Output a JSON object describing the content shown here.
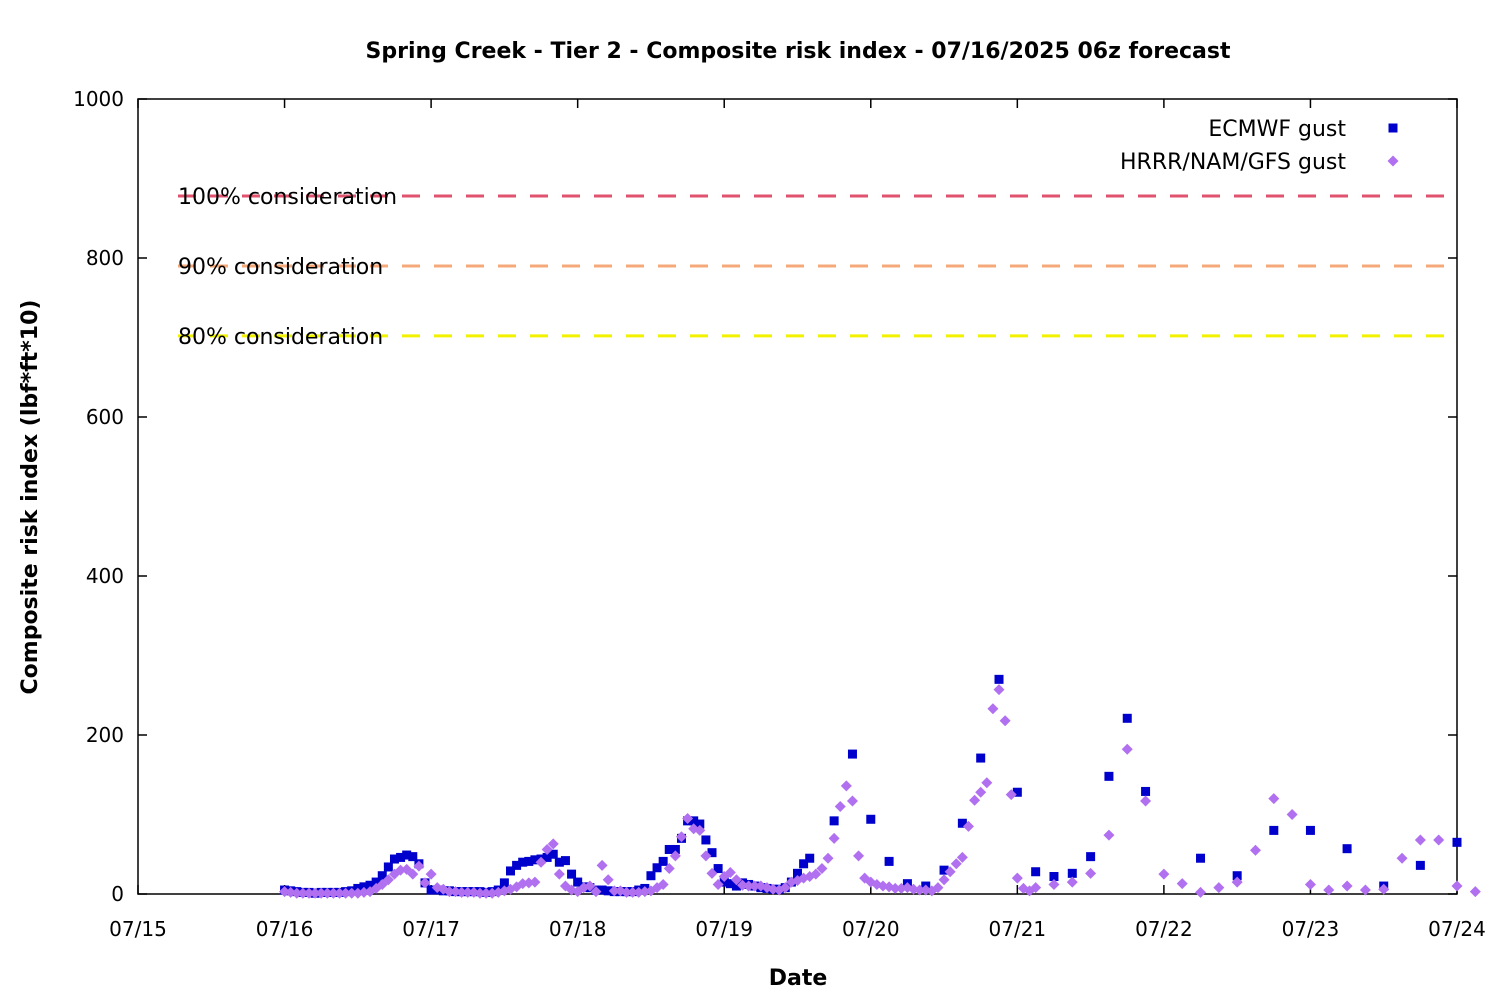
{
  "chart_data": {
    "type": "scatter",
    "title": "Spring Creek - Tier 2 - Composite risk index - 07/16/2025 06z forecast",
    "xlabel": "Date",
    "ylabel": "Composite risk index (lbf*ft*10)",
    "x_ticks": [
      "07/15",
      "07/16",
      "07/17",
      "07/18",
      "07/19",
      "07/20",
      "07/21",
      "07/22",
      "07/23",
      "07/24"
    ],
    "y_ticks": [
      "0",
      "200",
      "400",
      "600",
      "800",
      "1000"
    ],
    "xlim": [
      "07/15 00z",
      "07/24 00z"
    ],
    "ylim": [
      0,
      1000
    ],
    "grid": false,
    "legend_position": "top-right",
    "thresholds": [
      {
        "label": "100% consideration",
        "value": 878,
        "color": "#e0526e"
      },
      {
        "label": "90% consideration",
        "value": 790,
        "color": "#f5a878"
      },
      {
        "label": "80% consideration",
        "value": 702,
        "color": "#f2f200"
      }
    ],
    "series": [
      {
        "name": "ECMWF gust",
        "marker": "square",
        "color": "#0000cc",
        "points": [
          [
            "07/16 00z",
            5
          ],
          [
            "07/16 01z",
            4
          ],
          [
            "07/16 02z",
            3
          ],
          [
            "07/16 03z",
            2
          ],
          [
            "07/16 04z",
            2
          ],
          [
            "07/16 05z",
            1
          ],
          [
            "07/16 06z",
            2
          ],
          [
            "07/16 07z",
            2
          ],
          [
            "07/16 08z",
            2
          ],
          [
            "07/16 09z",
            2
          ],
          [
            "07/16 10z",
            3
          ],
          [
            "07/16 11z",
            4
          ],
          [
            "07/16 12z",
            7
          ],
          [
            "07/16 13z",
            9
          ],
          [
            "07/16 14z",
            11
          ],
          [
            "07/16 15z",
            15
          ],
          [
            "07/16 16z",
            23
          ],
          [
            "07/16 17z",
            34
          ],
          [
            "07/16 18z",
            44
          ],
          [
            "07/16 19z",
            46
          ],
          [
            "07/16 20z",
            49
          ],
          [
            "07/16 21z",
            47
          ],
          [
            "07/16 22z",
            38
          ],
          [
            "07/16 23z",
            14
          ],
          [
            "07/17 00z",
            5
          ],
          [
            "07/17 01z",
            5
          ],
          [
            "07/17 02z",
            4
          ],
          [
            "07/17 03z",
            4
          ],
          [
            "07/17 04z",
            3
          ],
          [
            "07/17 05z",
            3
          ],
          [
            "07/17 06z",
            3
          ],
          [
            "07/17 07z",
            3
          ],
          [
            "07/17 08z",
            3
          ],
          [
            "07/17 09z",
            2
          ],
          [
            "07/17 10z",
            3
          ],
          [
            "07/17 11z",
            5
          ],
          [
            "07/17 12z",
            14
          ],
          [
            "07/17 13z",
            29
          ],
          [
            "07/17 14z",
            36
          ],
          [
            "07/17 15z",
            40
          ],
          [
            "07/17 16z",
            41
          ],
          [
            "07/17 17z",
            43
          ],
          [
            "07/17 18z",
            44
          ],
          [
            "07/17 19z",
            46
          ],
          [
            "07/17 20z",
            50
          ],
          [
            "07/17 21z",
            40
          ],
          [
            "07/17 22z",
            42
          ],
          [
            "07/17 23z",
            25
          ],
          [
            "07/18 00z",
            15
          ],
          [
            "07/18 01z",
            9
          ],
          [
            "07/18 02z",
            8
          ],
          [
            "07/18 03z",
            5
          ],
          [
            "07/18 04z",
            5
          ],
          [
            "07/18 05z",
            4
          ],
          [
            "07/18 06z",
            3
          ],
          [
            "07/18 07z",
            3
          ],
          [
            "07/18 08z",
            3
          ],
          [
            "07/18 09z",
            3
          ],
          [
            "07/18 10z",
            5
          ],
          [
            "07/18 11z",
            7
          ],
          [
            "07/18 12z",
            23
          ],
          [
            "07/18 13z",
            33
          ],
          [
            "07/18 14z",
            41
          ],
          [
            "07/18 15z",
            56
          ],
          [
            "07/18 16z",
            56
          ],
          [
            "07/18 17z",
            70
          ],
          [
            "07/18 18z",
            92
          ],
          [
            "07/18 19z",
            92
          ],
          [
            "07/18 20z",
            88
          ],
          [
            "07/18 21z",
            68
          ],
          [
            "07/18 22z",
            52
          ],
          [
            "07/18 23z",
            32
          ],
          [
            "07/19 00z",
            15
          ],
          [
            "07/19 01z",
            13
          ],
          [
            "07/19 02z",
            10
          ],
          [
            "07/19 03z",
            14
          ],
          [
            "07/19 04z",
            12
          ],
          [
            "07/19 05z",
            10
          ],
          [
            "07/19 06z",
            8
          ],
          [
            "07/19 07z",
            7
          ],
          [
            "07/19 08z",
            6
          ],
          [
            "07/19 09z",
            6
          ],
          [
            "07/19 10z",
            8
          ],
          [
            "07/19 11z",
            15
          ],
          [
            "07/19 12z",
            26
          ],
          [
            "07/19 13z",
            38
          ],
          [
            "07/19 14z",
            45
          ],
          [
            "07/19 18z",
            92
          ],
          [
            "07/19 21z",
            176
          ],
          [
            "07/20 00z",
            94
          ],
          [
            "07/20 03z",
            41
          ],
          [
            "07/20 06z",
            13
          ],
          [
            "07/20 09z",
            10
          ],
          [
            "07/20 12z",
            30
          ],
          [
            "07/20 15z",
            89
          ],
          [
            "07/20 18z",
            171
          ],
          [
            "07/20 21z",
            270
          ],
          [
            "07/21 00z",
            128
          ],
          [
            "07/21 03z",
            28
          ],
          [
            "07/21 06z",
            22
          ],
          [
            "07/21 09z",
            26
          ],
          [
            "07/21 12z",
            47
          ],
          [
            "07/21 15z",
            148
          ],
          [
            "07/21 18z",
            221
          ],
          [
            "07/21 21z",
            129
          ],
          [
            "07/22 06z",
            45
          ],
          [
            "07/22 12z",
            23
          ],
          [
            "07/22 18z",
            80
          ],
          [
            "07/23 00z",
            80
          ],
          [
            "07/23 06z",
            57
          ],
          [
            "07/23 12z",
            10
          ],
          [
            "07/23 18z",
            36
          ],
          [
            "07/24 00z",
            65
          ]
        ]
      },
      {
        "name": "HRRR/NAM/GFS gust",
        "marker": "diamond",
        "color": "#b070f0",
        "points": [
          [
            "07/16 00z",
            3
          ],
          [
            "07/16 01z",
            2
          ],
          [
            "07/16 02z",
            1
          ],
          [
            "07/16 03z",
            1
          ],
          [
            "07/16 04z",
            1
          ],
          [
            "07/16 05z",
            1
          ],
          [
            "07/16 06z",
            1
          ],
          [
            "07/16 07z",
            1
          ],
          [
            "07/16 08z",
            1
          ],
          [
            "07/16 09z",
            1
          ],
          [
            "07/16 10z",
            1
          ],
          [
            "07/16 11z",
            1
          ],
          [
            "07/16 12z",
            1
          ],
          [
            "07/16 13z",
            2
          ],
          [
            "07/16 14z",
            3
          ],
          [
            "07/16 15z",
            7
          ],
          [
            "07/16 16z",
            12
          ],
          [
            "07/16 17z",
            18
          ],
          [
            "07/16 18z",
            25
          ],
          [
            "07/16 19z",
            30
          ],
          [
            "07/16 20z",
            31
          ],
          [
            "07/16 21z",
            25
          ],
          [
            "07/16 22z",
            35
          ],
          [
            "07/16 23z",
            14
          ],
          [
            "07/17 00z",
            25
          ],
          [
            "07/17 01z",
            8
          ],
          [
            "07/17 02z",
            6
          ],
          [
            "07/17 03z",
            3
          ],
          [
            "07/17 04z",
            3
          ],
          [
            "07/17 05z",
            2
          ],
          [
            "07/17 06z",
            2
          ],
          [
            "07/17 07z",
            2
          ],
          [
            "07/17 08z",
            1
          ],
          [
            "07/17 09z",
            1
          ],
          [
            "07/17 10z",
            1
          ],
          [
            "07/17 11z",
            2
          ],
          [
            "07/17 12z",
            4
          ],
          [
            "07/17 13z",
            6
          ],
          [
            "07/17 14z",
            9
          ],
          [
            "07/17 15z",
            13
          ],
          [
            "07/17 16z",
            14
          ],
          [
            "07/17 17z",
            15
          ],
          [
            "07/17 18z",
            40
          ],
          [
            "07/17 19z",
            56
          ],
          [
            "07/17 20z",
            63
          ],
          [
            "07/17 21z",
            25
          ],
          [
            "07/17 22z",
            10
          ],
          [
            "07/17 23z",
            5
          ],
          [
            "07/18 00z",
            3
          ],
          [
            "07/18 01z",
            8
          ],
          [
            "07/18 02z",
            10
          ],
          [
            "07/18 03z",
            3
          ],
          [
            "07/18 04z",
            36
          ],
          [
            "07/18 05z",
            18
          ],
          [
            "07/18 06z",
            4
          ],
          [
            "07/18 07z",
            4
          ],
          [
            "07/18 08z",
            2
          ],
          [
            "07/18 09z",
            2
          ],
          [
            "07/18 10z",
            2
          ],
          [
            "07/18 11z",
            3
          ],
          [
            "07/18 12z",
            4
          ],
          [
            "07/18 13z",
            8
          ],
          [
            "07/18 14z",
            12
          ],
          [
            "07/18 15z",
            32
          ],
          [
            "07/18 16z",
            48
          ],
          [
            "07/18 17z",
            72
          ],
          [
            "07/18 18z",
            95
          ],
          [
            "07/18 19z",
            82
          ],
          [
            "07/18 20z",
            80
          ],
          [
            "07/18 21z",
            48
          ],
          [
            "07/18 22z",
            26
          ],
          [
            "07/18 23z",
            12
          ],
          [
            "07/19 00z",
            22
          ],
          [
            "07/19 01z",
            27
          ],
          [
            "07/19 02z",
            18
          ],
          [
            "07/19 03z",
            11
          ],
          [
            "07/19 04z",
            10
          ],
          [
            "07/19 05z",
            10
          ],
          [
            "07/19 06z",
            10
          ],
          [
            "07/19 07z",
            8
          ],
          [
            "07/19 08z",
            6
          ],
          [
            "07/19 09z",
            5
          ],
          [
            "07/19 10z",
            8
          ],
          [
            "07/19 11z",
            15
          ],
          [
            "07/19 12z",
            17
          ],
          [
            "07/19 13z",
            20
          ],
          [
            "07/19 14z",
            22
          ],
          [
            "07/19 15z",
            25
          ],
          [
            "07/19 16z",
            32
          ],
          [
            "07/19 17z",
            45
          ],
          [
            "07/19 18z",
            70
          ],
          [
            "07/19 19z",
            110
          ],
          [
            "07/19 20z",
            136
          ],
          [
            "07/19 21z",
            117
          ],
          [
            "07/19 22z",
            48
          ],
          [
            "07/19 23z",
            20
          ],
          [
            "07/20 00z",
            15
          ],
          [
            "07/20 01z",
            12
          ],
          [
            "07/20 02z",
            10
          ],
          [
            "07/20 03z",
            9
          ],
          [
            "07/20 04z",
            7
          ],
          [
            "07/20 05z",
            7
          ],
          [
            "07/20 06z",
            8
          ],
          [
            "07/20 07z",
            6
          ],
          [
            "07/20 08z",
            5
          ],
          [
            "07/20 09z",
            5
          ],
          [
            "07/20 10z",
            4
          ],
          [
            "07/20 11z",
            8
          ],
          [
            "07/20 12z",
            18
          ],
          [
            "07/20 13z",
            28
          ],
          [
            "07/20 14z",
            38
          ],
          [
            "07/20 15z",
            46
          ],
          [
            "07/20 16z",
            85
          ],
          [
            "07/20 17z",
            118
          ],
          [
            "07/20 18z",
            128
          ],
          [
            "07/20 19z",
            140
          ],
          [
            "07/20 20z",
            233
          ],
          [
            "07/20 21z",
            257
          ],
          [
            "07/20 22z",
            218
          ],
          [
            "07/20 23z",
            125
          ],
          [
            "07/21 00z",
            20
          ],
          [
            "07/21 01z",
            7
          ],
          [
            "07/21 02z",
            4
          ],
          [
            "07/21 03z",
            8
          ],
          [
            "07/21 06z",
            12
          ],
          [
            "07/21 09z",
            15
          ],
          [
            "07/21 12z",
            26
          ],
          [
            "07/21 15z",
            74
          ],
          [
            "07/21 18z",
            182
          ],
          [
            "07/21 21z",
            117
          ],
          [
            "07/22 00z",
            25
          ],
          [
            "07/22 03z",
            13
          ],
          [
            "07/22 06z",
            2
          ],
          [
            "07/22 09z",
            8
          ],
          [
            "07/22 12z",
            15
          ],
          [
            "07/22 15z",
            55
          ],
          [
            "07/22 18z",
            120
          ],
          [
            "07/22 21z",
            100
          ],
          [
            "07/23 00z",
            12
          ],
          [
            "07/23 03z",
            5
          ],
          [
            "07/23 06z",
            10
          ],
          [
            "07/23 09z",
            5
          ],
          [
            "07/23 12z",
            6
          ],
          [
            "07/23 15z",
            45
          ],
          [
            "07/23 18z",
            68
          ],
          [
            "07/23 21z",
            68
          ],
          [
            "07/24 00z",
            10
          ],
          [
            "07/24 03z",
            3
          ]
        ]
      }
    ]
  }
}
